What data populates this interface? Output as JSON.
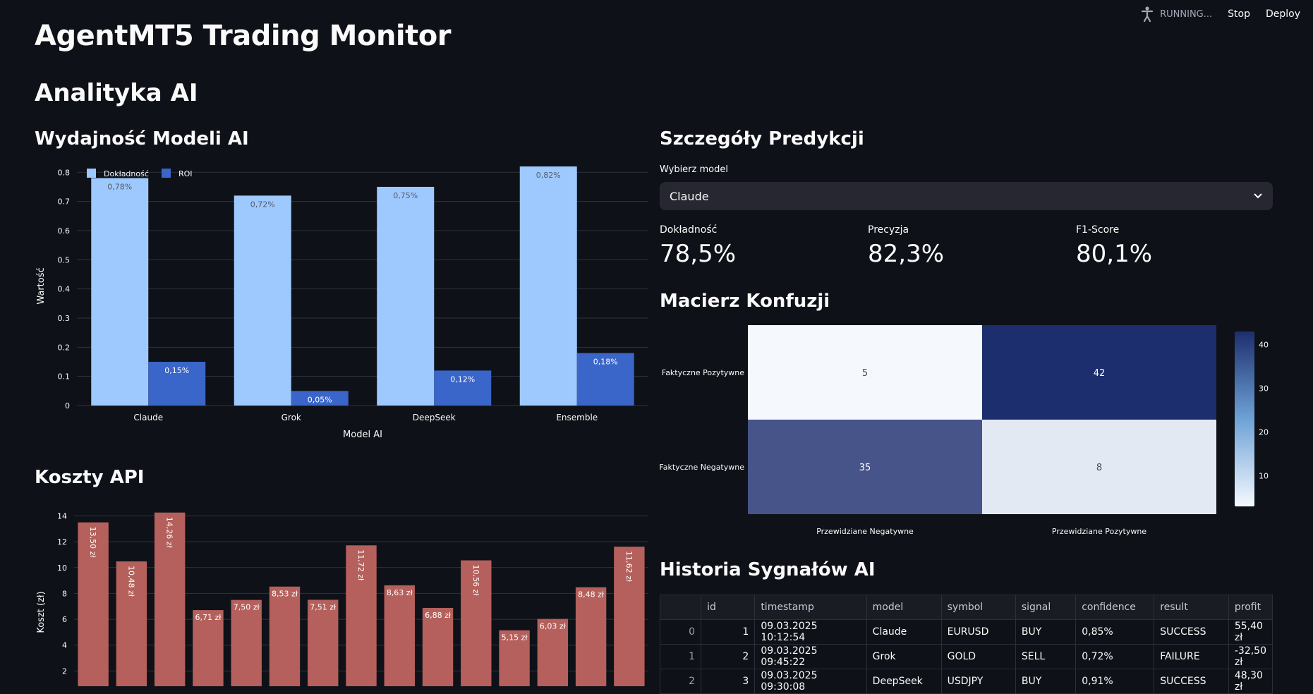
{
  "topbar": {
    "status": "RUNNING...",
    "stop": "Stop",
    "deploy": "Deploy"
  },
  "app_title": "AgentMT5 Trading Monitor",
  "section_title": "Analityka AI",
  "perf": {
    "title": "Wydajność Modeli AI",
    "chart_data": {
      "type": "bar",
      "categories": [
        "Claude",
        "Grok",
        "DeepSeek",
        "Ensemble"
      ],
      "series": [
        {
          "name": "Dokładność",
          "values": [
            0.78,
            0.72,
            0.75,
            0.82
          ],
          "labels": [
            "0,78%",
            "0,72%",
            "0,75%",
            "0,82%"
          ],
          "color": "#9ec9ff"
        },
        {
          "name": "ROI",
          "values": [
            0.15,
            0.05,
            0.12,
            0.18
          ],
          "labels": [
            "0,15%",
            "0,05%",
            "0,12%",
            "0,18%"
          ],
          "color": "#3a65c9"
        }
      ],
      "xlabel": "Model AI",
      "ylabel": "Wartość",
      "ylim": [
        0,
        0.82
      ],
      "yticks": [
        "0",
        "0.1",
        "0.2",
        "0.3",
        "0.4",
        "0.5",
        "0.6",
        "0.7",
        "0.8"
      ],
      "legend": "top-left"
    }
  },
  "costs": {
    "title": "Koszty API",
    "chart_data": {
      "type": "bar",
      "values": [
        13.5,
        10.48,
        14.26,
        6.71,
        7.5,
        8.53,
        7.51,
        11.72,
        8.63,
        6.88,
        10.56,
        5.15,
        6.03,
        8.48,
        11.62
      ],
      "labels": [
        "13,50 zł",
        "10,48 zł",
        "14,26 zł",
        "6,71 zł",
        "7,50 zł",
        "8,53 zł",
        "7,51 zł",
        "11,72 zł",
        "8,63 zł",
        "6,88 zł",
        "10,56 zł",
        "5,15 zł",
        "6,03 zł",
        "8,48 zł",
        "11,62 zł"
      ],
      "ylabel": "Koszt (zł)",
      "yticks": [
        "2",
        "4",
        "6",
        "8",
        "10",
        "12",
        "14"
      ],
      "ylim": [
        0,
        14.3
      ],
      "color": "#b5605c"
    }
  },
  "details": {
    "title": "Szczegóły Predykcji",
    "select_label": "Wybierz model",
    "selected_model": "Claude",
    "metrics": [
      {
        "label": "Dokładność",
        "value": "78,5%"
      },
      {
        "label": "Precyzja",
        "value": "82,3%"
      },
      {
        "label": "F1-Score",
        "value": "80,1%"
      }
    ]
  },
  "confusion": {
    "title": "Macierz Konfuzji",
    "chart_data": {
      "type": "heatmap",
      "rows": [
        "Faktyczne Pozytywne",
        "Faktyczne Negatywne"
      ],
      "cols": [
        "Przewidziane Negatywne",
        "Przewidziane Pozytywne"
      ],
      "values": [
        [
          5,
          42
        ],
        [
          35,
          8
        ]
      ],
      "colorbar_ticks": [
        "10",
        "20",
        "30",
        "40"
      ],
      "colors": {
        "low": "#f5f9fe",
        "high": "#1d2e6e"
      }
    }
  },
  "history": {
    "title": "Historia Sygnałów AI",
    "columns": [
      "",
      "id",
      "timestamp",
      "model",
      "symbol",
      "signal",
      "confidence",
      "result",
      "profit"
    ],
    "rows": [
      [
        "0",
        "1",
        "09.03.2025 10:12:54",
        "Claude",
        "EURUSD",
        "BUY",
        "0,85%",
        "SUCCESS",
        "55,40 zł"
      ],
      [
        "1",
        "2",
        "09.03.2025 09:45:22",
        "Grok",
        "GOLD",
        "SELL",
        "0,72%",
        "FAILURE",
        "-32,50 zł"
      ],
      [
        "2",
        "3",
        "09.03.2025 09:30:08",
        "DeepSeek",
        "USDJPY",
        "BUY",
        "0,91%",
        "SUCCESS",
        "48,30 zł"
      ]
    ]
  }
}
